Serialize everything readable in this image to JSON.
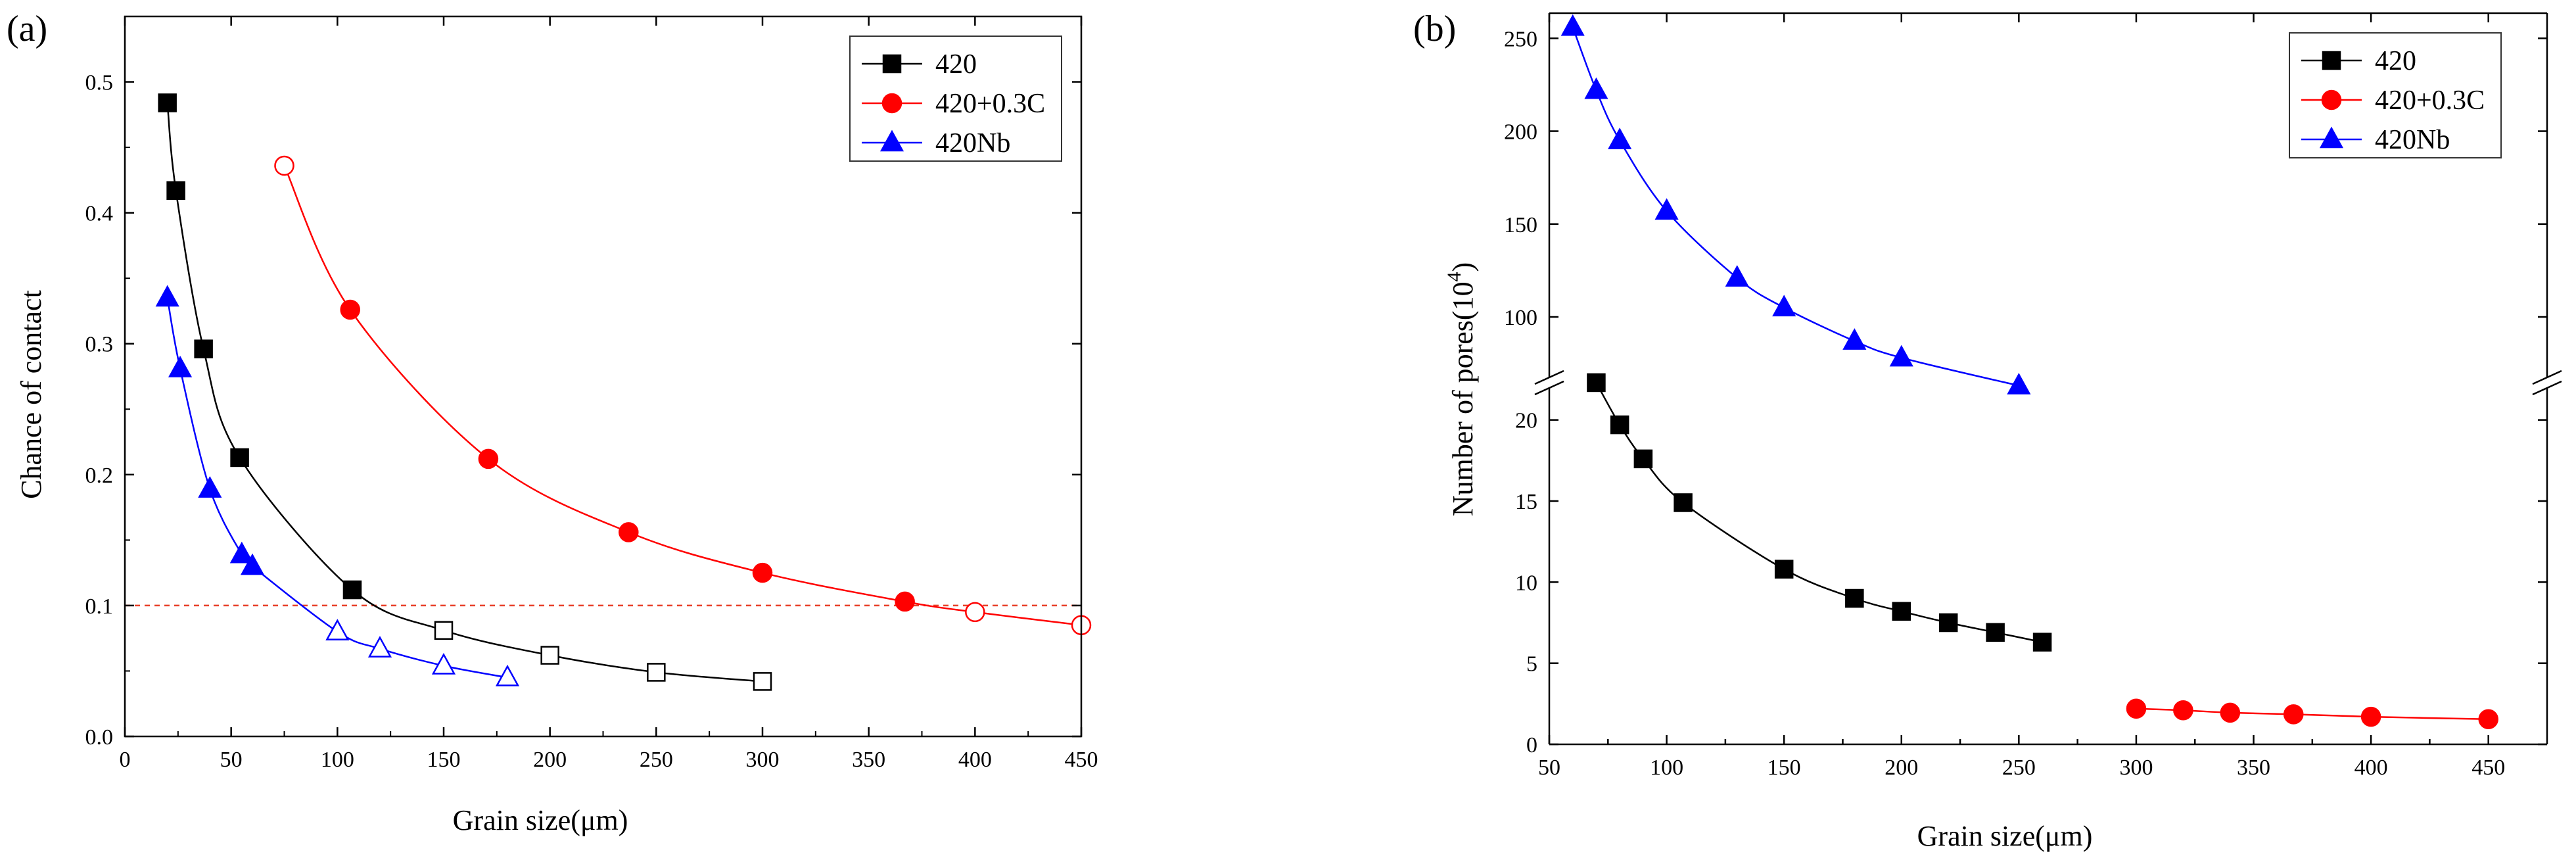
{
  "chart_data": [
    {
      "panel_label": "(a)",
      "type": "scatter",
      "xlabel": "Grain size(μm)",
      "ylabel": "Chance of contact",
      "xlim": [
        0,
        450
      ],
      "ylim": [
        0,
        0.55
      ],
      "xticks": [
        0,
        50,
        100,
        150,
        200,
        250,
        300,
        350,
        400,
        450
      ],
      "yticks": [
        0.0,
        0.1,
        0.2,
        0.3,
        0.4,
        0.5
      ],
      "xtick_labels": [
        "0",
        "50",
        "100",
        "150",
        "200",
        "250",
        "300",
        "350",
        "400",
        "450"
      ],
      "ytick_labels": [
        "0.0",
        "0.1",
        "0.2",
        "0.3",
        "0.4",
        "0.5"
      ],
      "grid": false,
      "legend_position": "top-right",
      "reference_line": {
        "y": 0.1,
        "style": "dashed",
        "color": "#e8402a"
      },
      "series": [
        {
          "name": "420",
          "color": "#000000",
          "marker": "square",
          "points": [
            {
              "x": 20,
              "y": 0.484,
              "filled": true
            },
            {
              "x": 24,
              "y": 0.417,
              "filled": true
            },
            {
              "x": 37,
              "y": 0.296,
              "filled": true
            },
            {
              "x": 54,
              "y": 0.213,
              "filled": true
            },
            {
              "x": 107,
              "y": 0.112,
              "filled": true
            },
            {
              "x": 150,
              "y": 0.081,
              "filled": false
            },
            {
              "x": 200,
              "y": 0.062,
              "filled": false
            },
            {
              "x": 250,
              "y": 0.049,
              "filled": false
            },
            {
              "x": 300,
              "y": 0.042,
              "filled": false
            }
          ]
        },
        {
          "name": "420+0.3C",
          "color": "#ff0000",
          "marker": "circle",
          "points": [
            {
              "x": 75,
              "y": 0.436,
              "filled": false
            },
            {
              "x": 106,
              "y": 0.326,
              "filled": true
            },
            {
              "x": 171,
              "y": 0.212,
              "filled": true
            },
            {
              "x": 237,
              "y": 0.156,
              "filled": true
            },
            {
              "x": 300,
              "y": 0.125,
              "filled": true
            },
            {
              "x": 367,
              "y": 0.103,
              "filled": true
            },
            {
              "x": 400,
              "y": 0.095,
              "filled": false
            },
            {
              "x": 450,
              "y": 0.085,
              "filled": false
            }
          ]
        },
        {
          "name": "420Nb",
          "color": "#0000ff",
          "marker": "triangle",
          "points": [
            {
              "x": 20,
              "y": 0.335,
              "filled": true
            },
            {
              "x": 26,
              "y": 0.281,
              "filled": true
            },
            {
              "x": 40,
              "y": 0.189,
              "filled": true
            },
            {
              "x": 55,
              "y": 0.139,
              "filled": true
            },
            {
              "x": 60,
              "y": 0.13,
              "filled": true
            },
            {
              "x": 100,
              "y": 0.08,
              "filled": false
            },
            {
              "x": 120,
              "y": 0.067,
              "filled": false
            },
            {
              "x": 150,
              "y": 0.054,
              "filled": false
            },
            {
              "x": 180,
              "y": 0.045,
              "filled": false
            }
          ]
        }
      ]
    },
    {
      "panel_label": "(b)",
      "type": "scatter",
      "xlabel": "Grain size(μm)",
      "ylabel_main": "Number of pores(10",
      "ylabel_sup": "4",
      "ylabel_tail": ")",
      "xlim": [
        50,
        475
      ],
      "xticks": [
        50,
        100,
        150,
        200,
        250,
        300,
        350,
        400,
        450
      ],
      "xtick_labels": [
        "50",
        "100",
        "150",
        "200",
        "250",
        "300",
        "350",
        "400",
        "450"
      ],
      "y_axis_break": true,
      "ylim_lower": [
        0,
        24
      ],
      "ylim_upper": [
        60,
        260
      ],
      "yticks_lower": [
        0,
        5,
        10,
        15,
        20
      ],
      "ytick_labels_lower": [
        "0",
        "5",
        "10",
        "15",
        "20"
      ],
      "yticks_upper": [
        100,
        150,
        200,
        250
      ],
      "ytick_labels_upper": [
        "100",
        "150",
        "200",
        "250"
      ],
      "grid": false,
      "legend_position": "top-right",
      "series": [
        {
          "name": "420",
          "color": "#000000",
          "marker": "square",
          "x": [
            70,
            80,
            90,
            107,
            150,
            180,
            200,
            220,
            240,
            260
          ],
          "y": [
            22.3,
            19.7,
            17.6,
            14.9,
            10.8,
            9.0,
            8.2,
            7.5,
            6.9,
            6.3
          ]
        },
        {
          "name": "420+0.3C",
          "color": "#ff0000",
          "marker": "circle",
          "x": [
            300,
            320,
            340,
            367,
            400,
            450
          ],
          "y": [
            2.2,
            2.1,
            1.95,
            1.85,
            1.7,
            1.55
          ]
        },
        {
          "name": "420Nb",
          "color": "#0000ff",
          "marker": "triangle",
          "x": [
            60,
            70,
            80,
            100,
            130,
            150,
            180,
            200,
            250
          ],
          "y": [
            256,
            222,
            195,
            157,
            121,
            105,
            87,
            78,
            63
          ]
        }
      ]
    }
  ]
}
